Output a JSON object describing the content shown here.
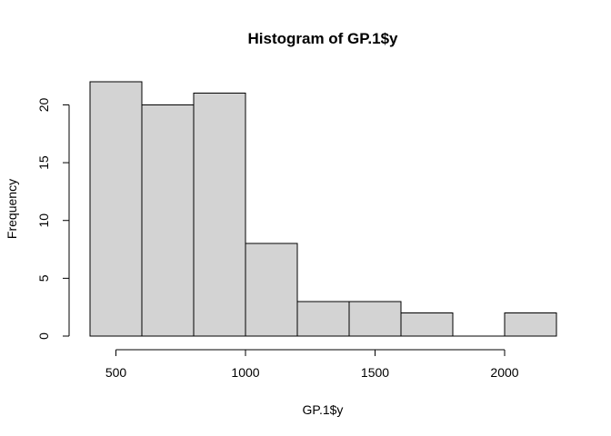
{
  "chart_data": {
    "type": "bar",
    "histogram": true,
    "title": "Histogram of GP.1$y",
    "xlabel": "GP.1$y",
    "ylabel": "Frequency",
    "bins": [
      {
        "from": 400,
        "to": 600,
        "count": 22
      },
      {
        "from": 600,
        "to": 800,
        "count": 20
      },
      {
        "from": 800,
        "to": 1000,
        "count": 21
      },
      {
        "from": 1000,
        "to": 1200,
        "count": 8
      },
      {
        "from": 1200,
        "to": 1400,
        "count": 3
      },
      {
        "from": 1400,
        "to": 1600,
        "count": 3
      },
      {
        "from": 1600,
        "to": 1800,
        "count": 2
      },
      {
        "from": 1800,
        "to": 2000,
        "count": 0
      },
      {
        "from": 2000,
        "to": 2200,
        "count": 2
      }
    ],
    "xlim": [
      400,
      2200
    ],
    "ylim": [
      0,
      22
    ],
    "x_ticks": [
      500,
      1000,
      1500,
      2000
    ],
    "x_tick_labels": [
      "500",
      "1000",
      "1500",
      "2000"
    ],
    "y_ticks": [
      0,
      5,
      10,
      15,
      20
    ],
    "y_tick_labels": [
      "0",
      "5",
      "10",
      "15",
      "20"
    ],
    "grid": false,
    "legend": "none",
    "colors": {
      "bar_fill": "#d3d3d3",
      "bar_stroke": "#000000",
      "background": "#ffffff"
    }
  }
}
